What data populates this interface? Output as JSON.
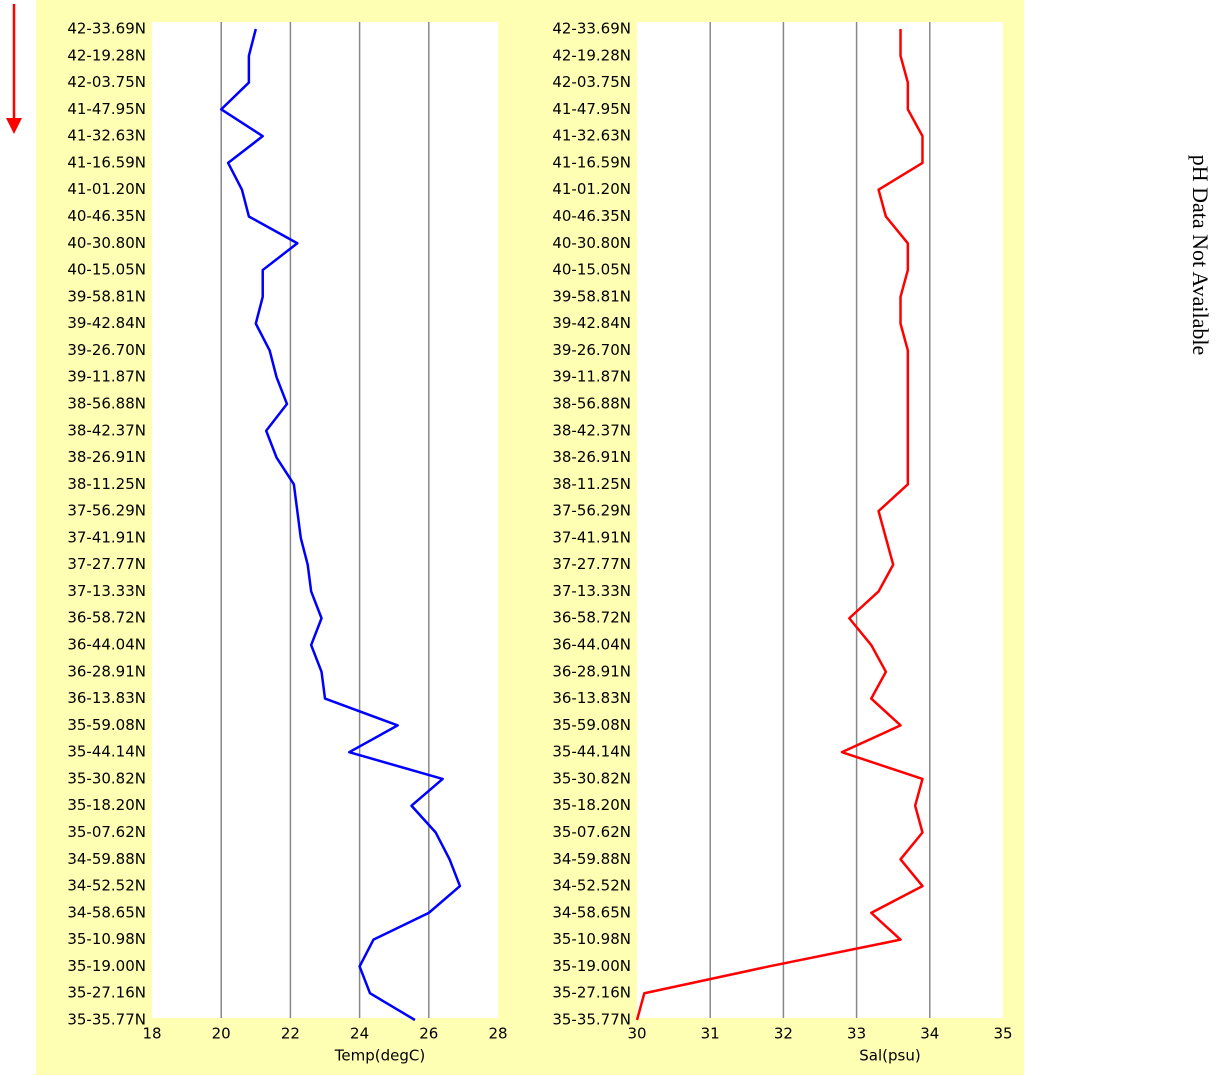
{
  "chart_data": [
    {
      "type": "line",
      "x_label": "Temp(degC)",
      "categories": [
        "42-33.69N",
        "42-19.28N",
        "42-03.75N",
        "41-47.95N",
        "41-32.63N",
        "41-16.59N",
        "41-01.20N",
        "40-46.35N",
        "40-30.80N",
        "40-15.05N",
        "39-58.81N",
        "39-42.84N",
        "39-26.70N",
        "39-11.87N",
        "38-56.88N",
        "38-42.37N",
        "38-26.91N",
        "38-11.25N",
        "37-56.29N",
        "37-41.91N",
        "37-27.77N",
        "37-13.33N",
        "36-58.72N",
        "36-44.04N",
        "36-28.91N",
        "36-13.83N",
        "35-59.08N",
        "35-44.14N",
        "35-30.82N",
        "35-18.20N",
        "35-07.62N",
        "34-59.88N",
        "34-52.52N",
        "34-58.65N",
        "35-10.98N",
        "35-19.00N",
        "35-27.16N",
        "35-35.77N"
      ],
      "series": [
        {
          "name": "Temp",
          "color": "#0000ff",
          "values": [
            21.0,
            20.8,
            20.8,
            20.0,
            21.2,
            20.2,
            20.6,
            20.8,
            22.2,
            21.2,
            21.2,
            21.0,
            21.4,
            21.6,
            21.9,
            21.3,
            21.6,
            22.1,
            22.2,
            22.3,
            22.5,
            22.6,
            22.9,
            22.6,
            22.9,
            23.0,
            25.1,
            23.7,
            26.4,
            25.5,
            26.2,
            26.6,
            26.9,
            26.0,
            24.4,
            24.0,
            24.3,
            25.6
          ]
        }
      ],
      "xlim": [
        18,
        28
      ],
      "xticks": [
        18,
        20,
        22,
        24,
        26,
        28
      ],
      "grid": true
    },
    {
      "type": "line",
      "x_label": "Sal(psu)",
      "categories": [
        "42-33.69N",
        "42-19.28N",
        "42-03.75N",
        "41-47.95N",
        "41-32.63N",
        "41-16.59N",
        "41-01.20N",
        "40-46.35N",
        "40-30.80N",
        "40-15.05N",
        "39-58.81N",
        "39-42.84N",
        "39-26.70N",
        "39-11.87N",
        "38-56.88N",
        "38-42.37N",
        "38-26.91N",
        "38-11.25N",
        "37-56.29N",
        "37-41.91N",
        "37-27.77N",
        "37-13.33N",
        "36-58.72N",
        "36-44.04N",
        "36-28.91N",
        "36-13.83N",
        "35-59.08N",
        "35-44.14N",
        "35-30.82N",
        "35-18.20N",
        "35-07.62N",
        "34-59.88N",
        "34-52.52N",
        "34-58.65N",
        "35-10.98N",
        "35-19.00N",
        "35-27.16N",
        "35-35.77N"
      ],
      "series": [
        {
          "name": "Sal",
          "color": "#ff0000",
          "values": [
            33.6,
            33.6,
            33.7,
            33.7,
            33.9,
            33.9,
            33.3,
            33.4,
            33.7,
            33.7,
            33.6,
            33.6,
            33.7,
            33.7,
            33.7,
            33.7,
            33.7,
            33.7,
            33.3,
            33.4,
            33.5,
            33.3,
            32.9,
            33.2,
            33.4,
            33.2,
            33.6,
            32.8,
            33.9,
            33.8,
            33.9,
            33.6,
            33.9,
            33.2,
            33.6,
            31.8,
            30.1,
            30.0
          ]
        }
      ],
      "xlim": [
        30,
        35
      ],
      "xticks": [
        30,
        31,
        32,
        33,
        34,
        35
      ],
      "grid": true
    }
  ],
  "annotation": "pH Data Not Available"
}
